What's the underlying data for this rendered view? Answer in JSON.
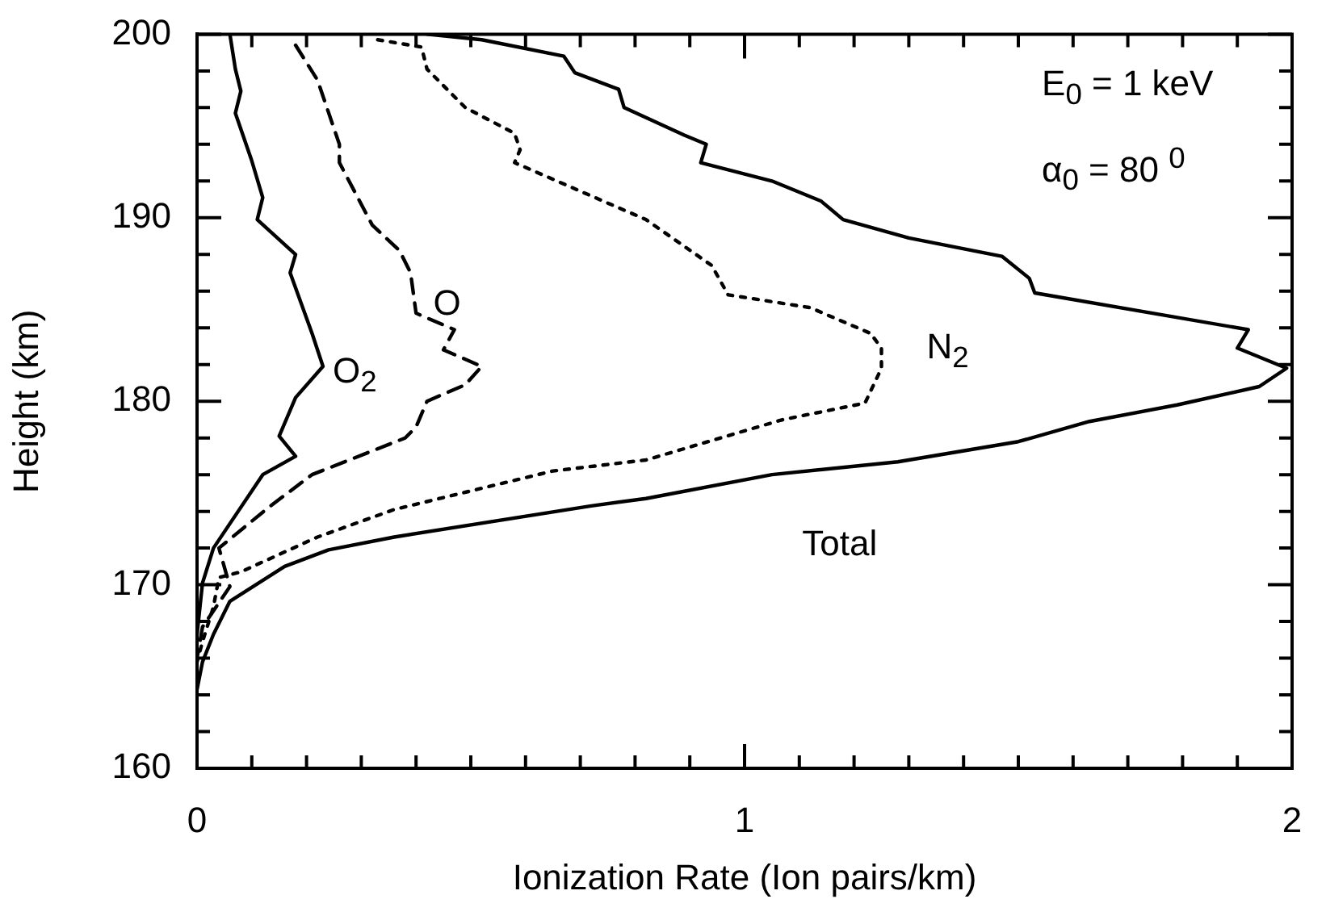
{
  "chart_data": {
    "type": "line",
    "xlabel": "Ionization Rate (Ion pairs/km)",
    "ylabel": "Height (km)",
    "xlim": [
      0,
      2
    ],
    "ylim": [
      160,
      200
    ],
    "xticks": [
      0,
      {
        "value": 0.1,
        "label": null
      },
      {
        "value": 0.2,
        "label": null
      },
      {
        "value": 0.3,
        "label": null
      },
      {
        "value": 0.4,
        "label": null
      },
      {
        "value": 0.5,
        "label": null
      },
      {
        "value": 0.6,
        "label": null
      },
      {
        "value": 0.7,
        "label": null
      },
      {
        "value": 0.8,
        "label": null
      },
      {
        "value": 0.9,
        "label": null
      },
      1,
      {
        "value": 1.1,
        "label": null
      },
      {
        "value": 1.2,
        "label": null
      },
      {
        "value": 1.3,
        "label": null
      },
      {
        "value": 1.4,
        "label": null
      },
      {
        "value": 1.5,
        "label": null
      },
      {
        "value": 1.6,
        "label": null
      },
      {
        "value": 1.7,
        "label": null
      },
      {
        "value": 1.8,
        "label": null
      },
      {
        "value": 1.9,
        "label": null
      },
      2
    ],
    "yticks": [
      160,
      {
        "value": 162,
        "label": null
      },
      {
        "value": 164,
        "label": null
      },
      {
        "value": 166,
        "label": null
      },
      {
        "value": 168,
        "label": null
      },
      170,
      {
        "value": 172,
        "label": null
      },
      {
        "value": 174,
        "label": null
      },
      {
        "value": 176,
        "label": null
      },
      {
        "value": 178,
        "label": null
      },
      180,
      {
        "value": 182,
        "label": null
      },
      {
        "value": 184,
        "label": null
      },
      {
        "value": 186,
        "label": null
      },
      {
        "value": 188,
        "label": null
      },
      190,
      {
        "value": 192,
        "label": null
      },
      {
        "value": 194,
        "label": null
      },
      {
        "value": 196,
        "label": null
      },
      {
        "value": 198,
        "label": null
      },
      200
    ],
    "grid": false,
    "legend": false,
    "marker": "none",
    "annotations": [
      "E$_{0}$ = 1 keV",
      "α$_{0}$ = 80 $^{0}$"
    ],
    "series": [
      {
        "name": "O$_{2}$",
        "color": "#000000",
        "line_style": "solid",
        "x": [
          0.06,
          0.07,
          0.08,
          0.07,
          0.1,
          0.12,
          0.11,
          0.18,
          0.17,
          0.21,
          0.23,
          0.18,
          0.15,
          0.18,
          0.12,
          0.03,
          0.01,
          0
        ],
        "values": [
          200,
          198.1,
          196.9,
          195.7,
          193.1,
          191.1,
          189.9,
          188,
          187,
          183.7,
          181.9,
          180.2,
          178.1,
          177,
          176,
          172,
          170.1,
          167.3
        ]
      },
      {
        "name": "O",
        "color": "#000000",
        "line_style": "dashed",
        "x": [
          0.18,
          0.22,
          0.26,
          0.26,
          0.32,
          0.37,
          0.39,
          0.4,
          0.47,
          0.45,
          0.52,
          0.49,
          0.42,
          0.4,
          0.38,
          0.21,
          0.13,
          0.04,
          0.06,
          0.01,
          0
        ],
        "values": [
          199.4,
          197.5,
          194,
          193,
          189.6,
          188.2,
          187,
          184.8,
          183.9,
          182.8,
          181.9,
          180.9,
          180,
          178.6,
          178,
          176,
          174.2,
          172,
          169.9,
          167.7,
          166
        ]
      },
      {
        "name": "N$_{2}$",
        "color": "#000000",
        "line_style": "dotted",
        "x": [
          0.33,
          0.41,
          0.42,
          0.49,
          0.58,
          0.59,
          0.58,
          0.75,
          0.82,
          0.94,
          0.97,
          1.12,
          1.23,
          1.25,
          1.25,
          1.22,
          1.07,
          0.99,
          0.82,
          0.65,
          0.36,
          0.22,
          0.08,
          0.04,
          0.03,
          0.01,
          0
        ],
        "values": [
          199.7,
          199.3,
          198.1,
          196,
          194.6,
          193.7,
          193,
          190.8,
          189.9,
          187.4,
          185.8,
          185.1,
          183.7,
          182.9,
          181.8,
          179.9,
          179,
          178.3,
          176.8,
          176.2,
          174.1,
          172.6,
          170.7,
          170.4,
          168.8,
          166.9,
          165.8
        ]
      },
      {
        "name": "Total",
        "color": "#000000",
        "line_style": "solid",
        "x": [
          0.42,
          0.52,
          0.67,
          0.69,
          0.77,
          0.78,
          0.89,
          0.93,
          0.92,
          1.05,
          1.14,
          1.18,
          1.3,
          1.47,
          1.52,
          1.53,
          1.92,
          1.9,
          1.99,
          1.94,
          1.79,
          1.63,
          1.5,
          1.28,
          1.05,
          0.82,
          0.72,
          0.36,
          0.24,
          0.16,
          0.06,
          0.03,
          0.01,
          0
        ],
        "values": [
          200,
          199.7,
          198.8,
          197.9,
          197,
          196,
          194.5,
          194,
          193,
          192,
          190.9,
          189.9,
          188.9,
          187.9,
          186.7,
          185.9,
          183.9,
          182.9,
          181.8,
          180.8,
          179.8,
          178.9,
          177.8,
          176.7,
          176,
          174.7,
          174.3,
          172.6,
          171.9,
          171,
          169.1,
          167.3,
          165.8,
          164.3
        ]
      }
    ]
  }
}
